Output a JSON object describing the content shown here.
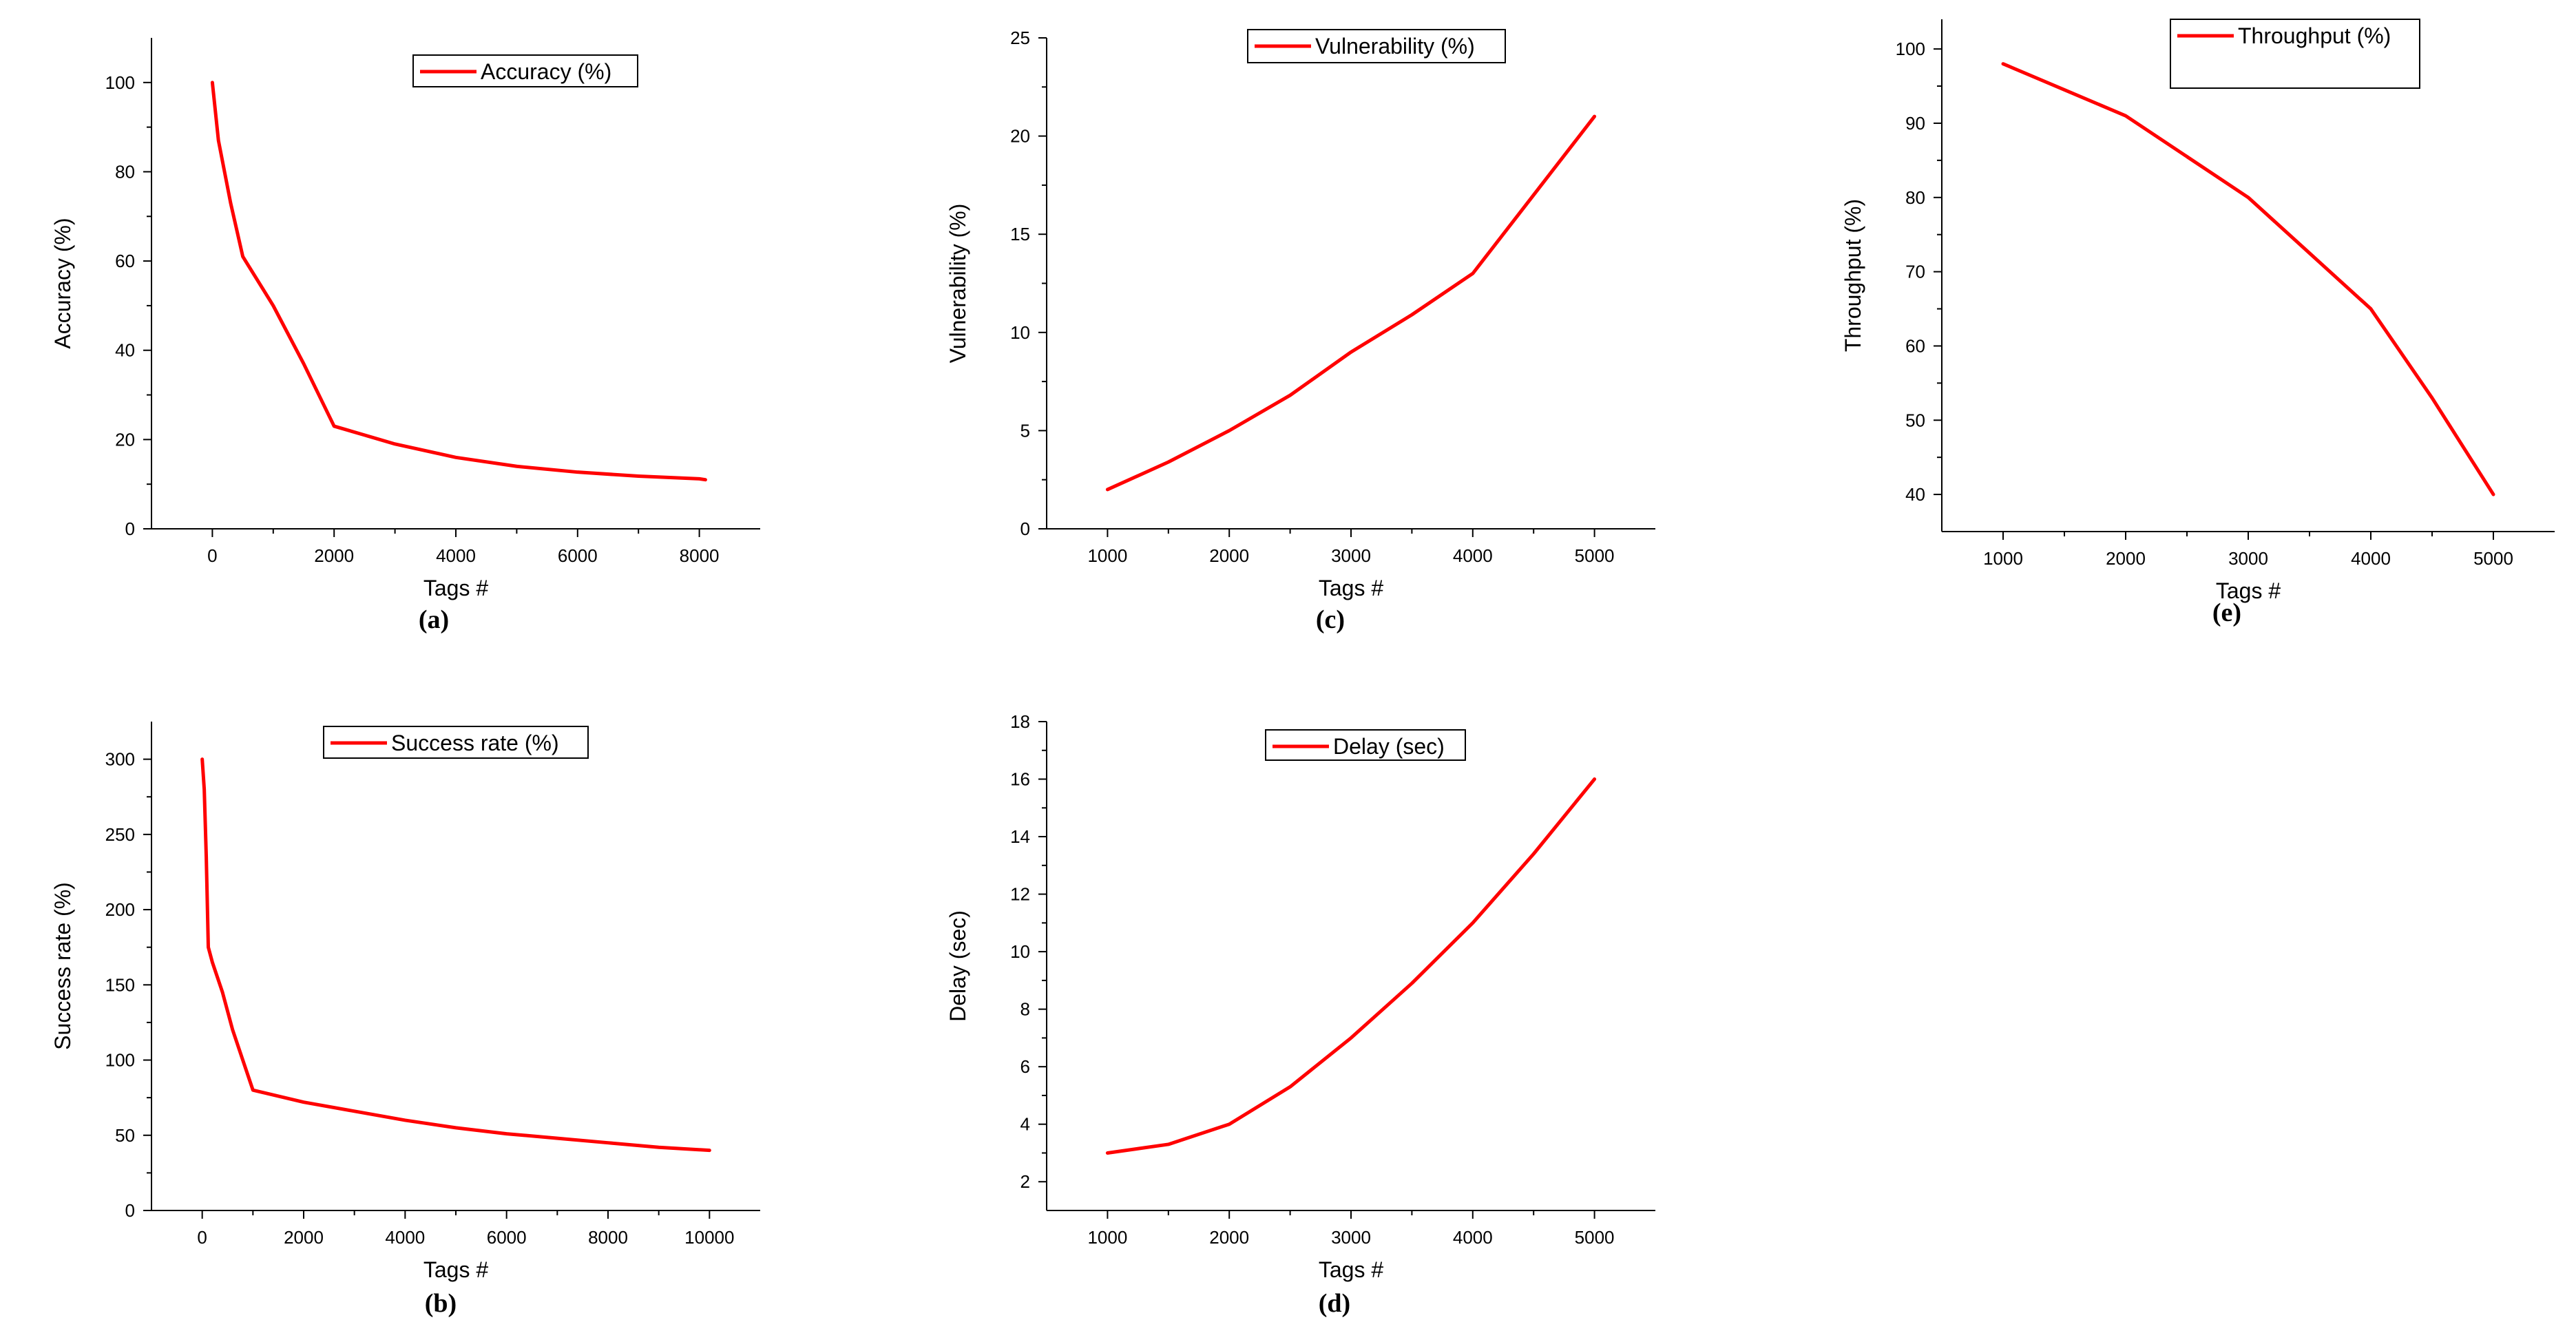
{
  "chart_data": [
    {
      "id": "a",
      "type": "line",
      "panel_label": "(a)",
      "title": "",
      "xlabel": "Tags #",
      "ylabel": "Accuracy (%)",
      "legend": [
        "Accuracy (%)"
      ],
      "legend_position": "top-right",
      "series_color": "#ff0000",
      "xlim": [
        -1000,
        9000
      ],
      "ylim": [
        0,
        110
      ],
      "xticks": [
        0,
        2000,
        4000,
        6000,
        8000
      ],
      "yticks": [
        0,
        20,
        40,
        60,
        80,
        100
      ],
      "xtick_labels": [
        "0",
        "2000",
        "4000",
        "6000",
        "8000"
      ],
      "ytick_labels": [
        "0",
        "20",
        "40",
        "60",
        "80",
        "100"
      ],
      "series": [
        {
          "name": "Accuracy (%)",
          "x": [
            0,
            100,
            300,
            500,
            1000,
            1500,
            2000,
            2500,
            3000,
            4000,
            5000,
            6000,
            7000,
            8000,
            8100
          ],
          "y": [
            100,
            87,
            73,
            61,
            50,
            37,
            23,
            21,
            19,
            16,
            14,
            12.7,
            11.8,
            11.2,
            11
          ]
        }
      ]
    },
    {
      "id": "b",
      "type": "line",
      "panel_label": "(b)",
      "title": "",
      "xlabel": "Tags #",
      "ylabel": "Success rate (%)",
      "legend": [
        "Success rate (%)"
      ],
      "legend_position": "top-right",
      "series_color": "#ff0000",
      "xlim": [
        -1000,
        11000
      ],
      "ylim": [
        0,
        325
      ],
      "xticks": [
        0,
        2000,
        4000,
        6000,
        8000,
        10000
      ],
      "yticks": [
        0,
        50,
        100,
        150,
        200,
        250,
        300
      ],
      "xtick_labels": [
        "0",
        "2000",
        "4000",
        "6000",
        "8000",
        "10000"
      ],
      "ytick_labels": [
        "0",
        "50",
        "100",
        "150",
        "200",
        "250",
        "300"
      ],
      "series": [
        {
          "name": "Success rate (%)",
          "x": [
            0,
            40,
            80,
            120,
            200,
            400,
            600,
            800,
            1000,
            2000,
            3000,
            4000,
            5000,
            6000,
            7000,
            8000,
            9000,
            10000
          ],
          "y": [
            300,
            280,
            235,
            175,
            165,
            145,
            120,
            100,
            80,
            72,
            66,
            60,
            55,
            51,
            48,
            45,
            42,
            40
          ]
        }
      ]
    },
    {
      "id": "c",
      "type": "line",
      "panel_label": "(c)",
      "title": "",
      "xlabel": "Tags #",
      "ylabel": "Vulnerability (%)",
      "legend": [
        "Vulnerability (%)"
      ],
      "legend_position": "top-right",
      "series_color": "#ff0000",
      "xlim": [
        500,
        5500
      ],
      "ylim": [
        0,
        25
      ],
      "xticks": [
        1000,
        2000,
        3000,
        4000,
        5000
      ],
      "yticks": [
        0,
        5,
        10,
        15,
        20,
        25
      ],
      "xtick_labels": [
        "1000",
        "2000",
        "3000",
        "4000",
        "5000"
      ],
      "ytick_labels": [
        "0",
        "5",
        "10",
        "15",
        "20",
        "25"
      ],
      "series": [
        {
          "name": "Vulnerability (%)",
          "x": [
            1000,
            1500,
            2000,
            2500,
            3000,
            3500,
            4000,
            4500,
            5000
          ],
          "y": [
            2,
            3.4,
            5,
            6.8,
            9,
            10.9,
            13,
            17,
            21
          ]
        }
      ]
    },
    {
      "id": "d",
      "type": "line",
      "panel_label": "(d)",
      "title": "",
      "xlabel": "Tags #",
      "ylabel": "Delay (sec)",
      "legend": [
        "Delay (sec)"
      ],
      "legend_position": "top-right",
      "series_color": "#ff0000",
      "xlim": [
        500,
        5500
      ],
      "ylim": [
        1,
        18
      ],
      "xticks": [
        1000,
        2000,
        3000,
        4000,
        5000
      ],
      "yticks": [
        2,
        4,
        6,
        8,
        10,
        12,
        14,
        16,
        18
      ],
      "xtick_labels": [
        "1000",
        "2000",
        "3000",
        "4000",
        "5000"
      ],
      "ytick_labels": [
        "2",
        "4",
        "6",
        "8",
        "10",
        "12",
        "14",
        "16",
        "18"
      ],
      "series": [
        {
          "name": "Delay (sec)",
          "x": [
            1000,
            1500,
            2000,
            2500,
            3000,
            3500,
            4000,
            4500,
            5000
          ],
          "y": [
            3,
            3.3,
            4,
            5.3,
            7,
            8.9,
            11,
            13.4,
            16
          ]
        }
      ]
    },
    {
      "id": "e",
      "type": "line",
      "panel_label": "(e)",
      "title": "",
      "xlabel": "Tags #",
      "ylabel": "Throughput (%)",
      "legend": [
        "Throughput (%)"
      ],
      "legend_position": "top-right",
      "series_color": "#ff0000",
      "xlim": [
        500,
        5500
      ],
      "ylim": [
        35,
        104
      ],
      "xticks": [
        1000,
        2000,
        3000,
        4000,
        5000
      ],
      "yticks": [
        40,
        50,
        60,
        70,
        80,
        90,
        100
      ],
      "xtick_labels": [
        "1000",
        "2000",
        "3000",
        "4000",
        "5000"
      ],
      "ytick_labels": [
        "40",
        "50",
        "60",
        "70",
        "80",
        "90",
        "100"
      ],
      "series": [
        {
          "name": "Throughput (%)",
          "x": [
            1000,
            1500,
            2000,
            2500,
            3000,
            3500,
            4000,
            4500,
            5000
          ],
          "y": [
            98,
            94.5,
            91,
            85.5,
            80,
            72.5,
            65,
            53,
            40
          ]
        }
      ]
    }
  ]
}
